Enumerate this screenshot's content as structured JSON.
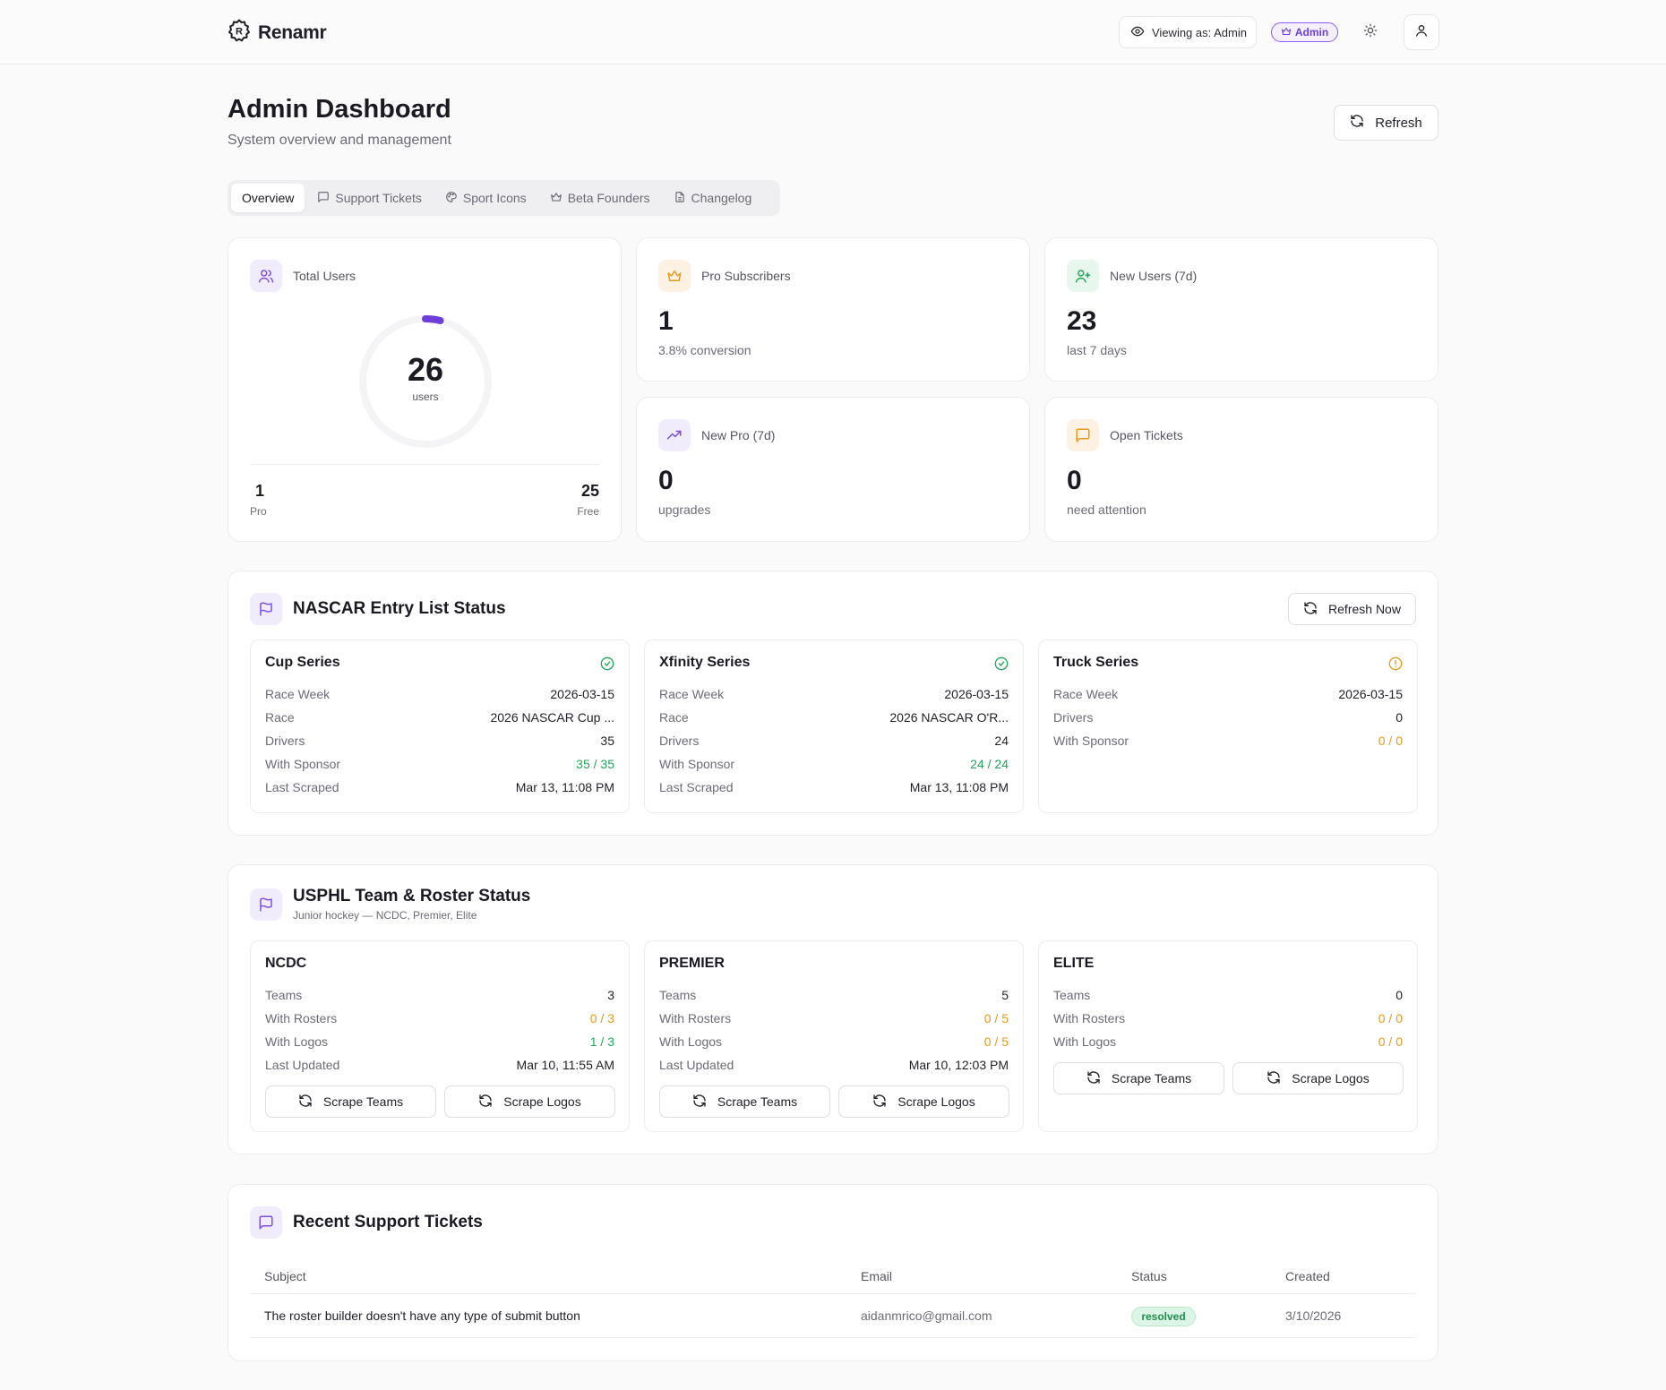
{
  "app": {
    "name": "Renamr"
  },
  "header": {
    "viewing_label": "Viewing as: Admin",
    "role_badge": "Admin"
  },
  "page": {
    "title": "Admin Dashboard",
    "subtitle": "System overview and management",
    "refresh_label": "Refresh"
  },
  "tabs": [
    {
      "label": "Overview",
      "icon": "none",
      "active": true
    },
    {
      "label": "Support Tickets",
      "icon": "message-square-icon",
      "active": false
    },
    {
      "label": "Sport Icons",
      "icon": "palette-icon",
      "active": false
    },
    {
      "label": "Beta Founders",
      "icon": "crown-icon",
      "active": false
    },
    {
      "label": "Changelog",
      "icon": "file-text-icon",
      "active": false
    }
  ],
  "stats": {
    "total_users": {
      "label": "Total Users",
      "value": "26",
      "unit": "users",
      "pro_count": "1",
      "pro_label": "Pro",
      "free_count": "25",
      "free_label": "Free",
      "pro_fraction": 0.038
    },
    "pro_subscribers": {
      "label": "Pro Subscribers",
      "value": "1",
      "sub": "3.8% conversion"
    },
    "new_users": {
      "label": "New Users (7d)",
      "value": "23",
      "sub": "last 7 days"
    },
    "new_pro": {
      "label": "New Pro (7d)",
      "value": "0",
      "sub": "upgrades"
    },
    "open_tickets": {
      "label": "Open Tickets",
      "value": "0",
      "sub": "need attention"
    }
  },
  "nascar": {
    "title": "NASCAR Entry List Status",
    "refresh_label": "Refresh Now",
    "series": [
      {
        "name": "Cup Series",
        "status": "ok",
        "rows": [
          {
            "k": "Race Week",
            "v": "2026-03-15",
            "tone": ""
          },
          {
            "k": "Race",
            "v": "2026 NASCAR Cup ...",
            "tone": ""
          },
          {
            "k": "Drivers",
            "v": "35",
            "tone": ""
          },
          {
            "k": "With Sponsor",
            "v": "35 / 35",
            "tone": "green"
          },
          {
            "k": "Last Scraped",
            "v": "Mar 13, 11:08 PM",
            "tone": ""
          }
        ]
      },
      {
        "name": "Xfinity Series",
        "status": "ok",
        "rows": [
          {
            "k": "Race Week",
            "v": "2026-03-15",
            "tone": ""
          },
          {
            "k": "Race",
            "v": "2026 NASCAR O'R...",
            "tone": ""
          },
          {
            "k": "Drivers",
            "v": "24",
            "tone": ""
          },
          {
            "k": "With Sponsor",
            "v": "24 / 24",
            "tone": "green"
          },
          {
            "k": "Last Scraped",
            "v": "Mar 13, 11:08 PM",
            "tone": ""
          }
        ]
      },
      {
        "name": "Truck Series",
        "status": "warning",
        "rows": [
          {
            "k": "Race Week",
            "v": "2026-03-15",
            "tone": ""
          },
          {
            "k": "Drivers",
            "v": "0",
            "tone": ""
          },
          {
            "k": "With Sponsor",
            "v": "0 / 0",
            "tone": "orange"
          }
        ]
      }
    ]
  },
  "usphl": {
    "title": "USPHL Team & Roster Status",
    "subtitle": "Junior hockey — NCDC, Premier, Elite",
    "scrape_teams_label": "Scrape Teams",
    "scrape_logos_label": "Scrape Logos",
    "leagues": [
      {
        "name": "NCDC",
        "rows": [
          {
            "k": "Teams",
            "v": "3",
            "tone": ""
          },
          {
            "k": "With Rosters",
            "v": "0 / 3",
            "tone": "orange"
          },
          {
            "k": "With Logos",
            "v": "1 / 3",
            "tone": "green"
          },
          {
            "k": "Last Updated",
            "v": "Mar 10, 11:55 AM",
            "tone": ""
          }
        ]
      },
      {
        "name": "PREMIER",
        "rows": [
          {
            "k": "Teams",
            "v": "5",
            "tone": ""
          },
          {
            "k": "With Rosters",
            "v": "0 / 5",
            "tone": "orange"
          },
          {
            "k": "With Logos",
            "v": "0 / 5",
            "tone": "orange"
          },
          {
            "k": "Last Updated",
            "v": "Mar 10, 12:03 PM",
            "tone": ""
          }
        ]
      },
      {
        "name": "ELITE",
        "rows": [
          {
            "k": "Teams",
            "v": "0",
            "tone": ""
          },
          {
            "k": "With Rosters",
            "v": "0 / 0",
            "tone": "orange"
          },
          {
            "k": "With Logos",
            "v": "0 / 0",
            "tone": "orange"
          }
        ]
      }
    ]
  },
  "tickets": {
    "title": "Recent Support Tickets",
    "columns": [
      "Subject",
      "Email",
      "Status",
      "Created"
    ],
    "rows": [
      {
        "subject": "The roster builder doesn't have any type of submit button",
        "email": "aidanmrico@gmail.com",
        "status": "resolved",
        "created": "3/10/2026"
      }
    ]
  },
  "colors": {
    "accent": "#6d3fd8",
    "success": "#22a55a",
    "warning": "#e39a1f"
  }
}
